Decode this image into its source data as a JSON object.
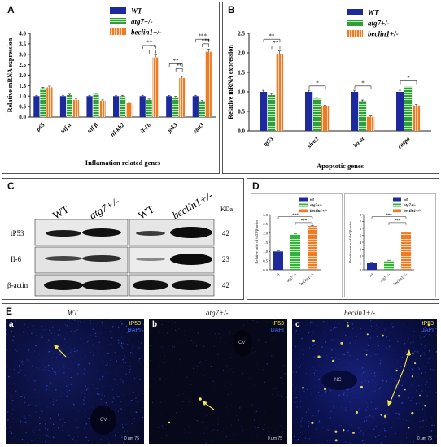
{
  "panels": {
    "A": "A",
    "B": "B",
    "C": "C",
    "D": "D",
    "E": "E"
  },
  "chart_data": [
    {
      "type": "bar",
      "ylabel": "Relative mRNA expression",
      "xlabel": "Inflamation related genes",
      "ylim": [
        0,
        4.0
      ],
      "yticks": [
        "0.0",
        "0.5",
        "1.0",
        "1.5",
        "2.0",
        "2.5",
        "3.0",
        "3.5",
        "4.0"
      ],
      "categories": [
        "p65",
        "tnf α",
        "tnf β",
        "nf-kb2",
        "il-1b",
        "jak3",
        "stat3"
      ],
      "series": [
        {
          "name": "WT",
          "color": "#1c2a9c",
          "values": [
            1.0,
            1.0,
            1.0,
            1.0,
            1.0,
            1.0,
            1.0
          ]
        },
        {
          "name": "atg7+/-",
          "color": "#2e9e3a",
          "values": [
            1.37,
            1.05,
            1.1,
            1.0,
            0.82,
            0.95,
            0.75
          ]
        },
        {
          "name": "beclin1+/-",
          "color": "#f07b22",
          "values": [
            1.42,
            0.82,
            0.78,
            0.66,
            2.85,
            1.87,
            3.12
          ]
        }
      ],
      "significance": [
        "**",
        "**",
        "**",
        "**",
        "***",
        "***"
      ]
    },
    {
      "type": "bar",
      "ylabel": "Relative mRNA expression",
      "xlabel": "Apoptotic genes",
      "ylim": [
        0,
        2.5
      ],
      "yticks": [
        "0.0",
        "0.5",
        "1.0",
        "1.5",
        "2.0",
        "2.5"
      ],
      "categories": [
        "tp53",
        "sivα1",
        "baxα",
        "caspa"
      ],
      "series": [
        {
          "name": "WT",
          "color": "#1c2a9c",
          "values": [
            1.0,
            1.0,
            1.0,
            1.0
          ]
        },
        {
          "name": "atg7+/-",
          "color": "#2e9e3a",
          "values": [
            0.92,
            0.82,
            0.76,
            1.13
          ]
        },
        {
          "name": "beclin1+/-",
          "color": "#f07b22",
          "values": [
            1.97,
            0.63,
            0.36,
            0.65
          ]
        }
      ],
      "significance": [
        "**",
        "**",
        "*",
        "*",
        "*"
      ]
    },
    {
      "type": "bar",
      "ylabel": "Relative ratio of tp53/β-actin",
      "categories": [
        "wt",
        "atg7+/-",
        "beclin1+/-"
      ],
      "yticks": [
        "0.0",
        "0.5",
        "1.0",
        "1.5",
        "2.0",
        "2.5",
        "3.0"
      ],
      "ylim": [
        0,
        3.0
      ],
      "series": [
        {
          "name": "",
          "values": [
            1.0,
            1.92,
            2.38
          ]
        }
      ],
      "colors": [
        "#1c2a9c",
        "#2e9e3a",
        "#f07b22"
      ],
      "legend": [
        "wt",
        "atg7+/-",
        "beclin1+/-"
      ],
      "significance": [
        "***",
        "***"
      ]
    },
    {
      "type": "bar",
      "ylabel": "Relative ratio of il-6/β-actin",
      "categories": [
        "wt",
        "atg7+/-",
        "beclin1+/-"
      ],
      "yticks": [
        "0",
        "1",
        "2",
        "3",
        "4",
        "5",
        "6",
        "7",
        "8"
      ],
      "ylim": [
        0,
        8
      ],
      "series": [
        {
          "name": "",
          "values": [
            1.0,
            1.3,
            5.4
          ]
        }
      ],
      "colors": [
        "#1c2a9c",
        "#2e9e3a",
        "#f07b22"
      ],
      "legend": [
        "wt",
        "atg7+/-",
        "beclin1+/-"
      ],
      "significance": [
        "***",
        "***"
      ]
    }
  ],
  "blot": {
    "headers": [
      "WT",
      "atg7+/-",
      "WT",
      "beclin1+/-"
    ],
    "kda_label": "KDa",
    "rows": [
      {
        "label": "tP53",
        "kda": "42"
      },
      {
        "label": "Il-6",
        "kda": "23"
      },
      {
        "label": "β-actin",
        "kda": "42"
      }
    ]
  },
  "micrographs": [
    {
      "letter": "a",
      "title": "WT",
      "region": "CV"
    },
    {
      "letter": "b",
      "title": "atg7+/-",
      "region": "CV"
    },
    {
      "letter": "c",
      "title": "beclin1+/-",
      "region": "NC"
    }
  ],
  "stains": {
    "first": "tP53",
    "second": "DAPI",
    "first_color": "#f2e64a",
    "second_color": "#3b6cff"
  },
  "scale": "0 μm 75"
}
